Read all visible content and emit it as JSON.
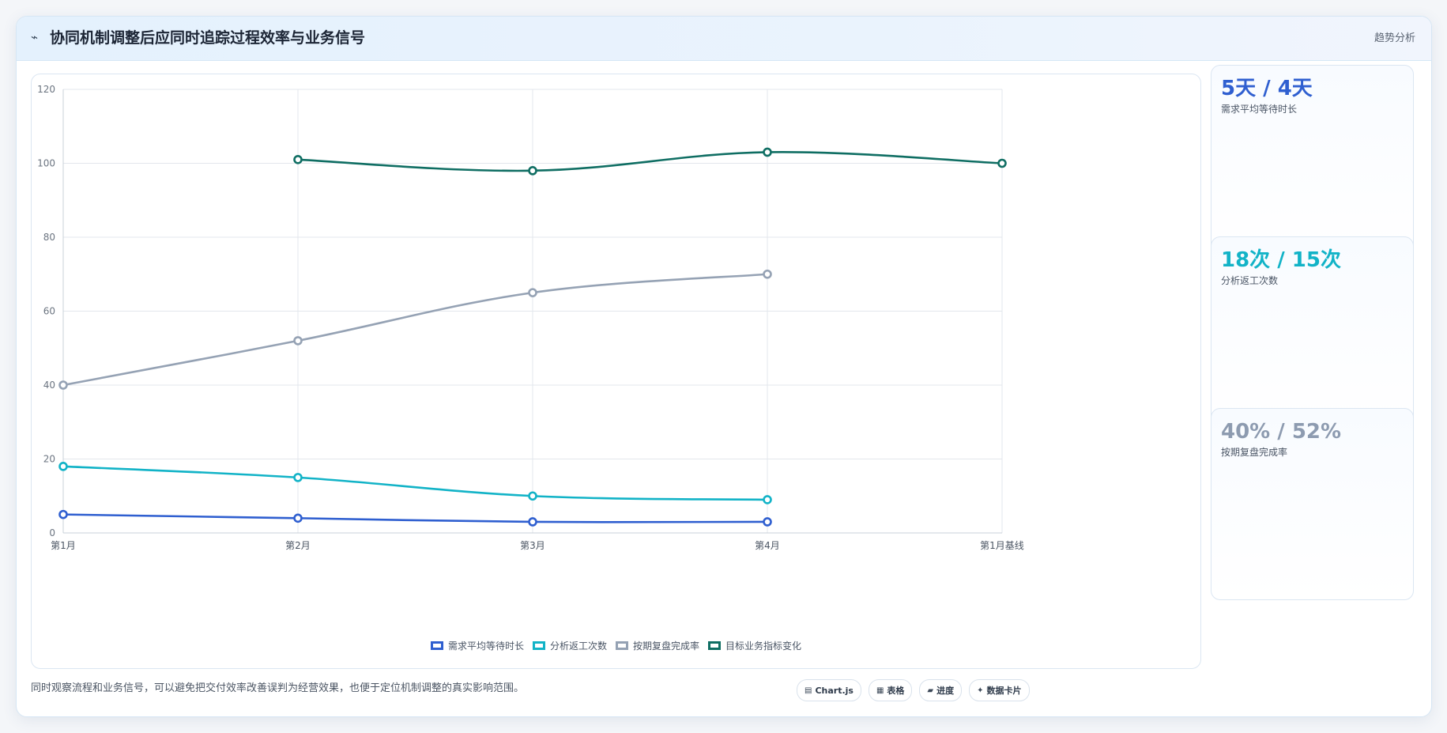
{
  "header": {
    "icon": "trend-line-icon",
    "title": "协同机制调整后应同时追踪过程效率与业务信号",
    "tag": "趋势分析"
  },
  "chart_data": {
    "type": "line",
    "categories": [
      "第1月",
      "第2月",
      "第3月",
      "第4月",
      "第1月基线"
    ],
    "ylim": [
      0,
      120
    ],
    "yticks": [
      0,
      20,
      40,
      60,
      80,
      100,
      120
    ],
    "grid": true,
    "legend_position": "bottom",
    "series": [
      {
        "name": "需求平均等待时长",
        "color": "#2f5fd0",
        "values": [
          5,
          4,
          3,
          3,
          null
        ]
      },
      {
        "name": "分析返工次数",
        "color": "#12b3c7",
        "values": [
          18,
          15,
          10,
          9,
          null
        ]
      },
      {
        "name": "按期复盘完成率",
        "color": "#95a2b4",
        "values": [
          40,
          52,
          65,
          70,
          null
        ]
      },
      {
        "name": "目标业务指标变化",
        "color": "#0f6e63",
        "values": [
          null,
          101,
          98,
          103,
          100
        ]
      }
    ]
  },
  "stats": [
    {
      "value": "5天 / 4天",
      "label": "需求平均等待时长",
      "color": "#2f5fd0"
    },
    {
      "value": "18次 / 15次",
      "label": "分析返工次数",
      "color": "#12b3c7"
    },
    {
      "value": "40% / 52%",
      "label": "按期复盘完成率",
      "color": "#8d9bb0"
    }
  ],
  "footer": {
    "note": "同时观察流程和业务信号，可以避免把交付效率改善误判为经营效果，也便于定位机制调整的真实影响范围。",
    "chips": [
      {
        "icon": "chart-icon",
        "glyph": "▤",
        "label": "Chart.js"
      },
      {
        "icon": "table-icon",
        "glyph": "▦",
        "label": "表格"
      },
      {
        "icon": "progress-icon",
        "glyph": "▰",
        "label": "进度"
      },
      {
        "icon": "card-icon",
        "glyph": "✦",
        "label": "数据卡片"
      }
    ]
  }
}
